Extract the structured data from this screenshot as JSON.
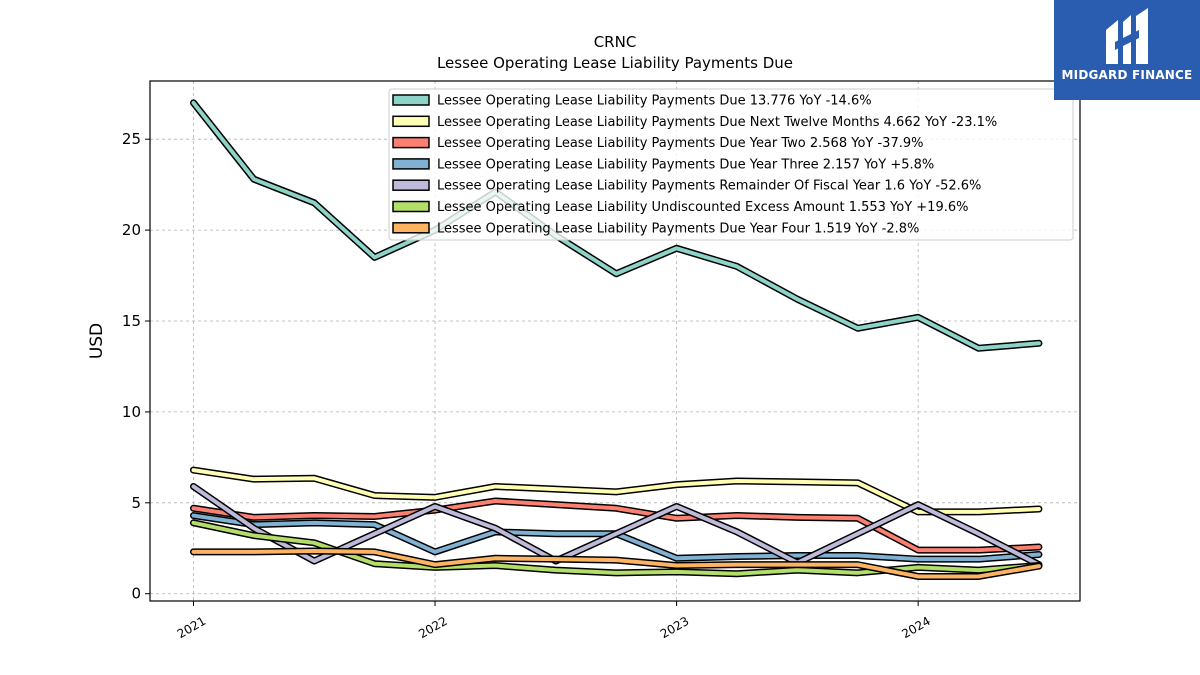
{
  "brand": {
    "name": "MIDGARD FINANCE",
    "bg_color": "#2a5db0"
  },
  "chart_data": {
    "type": "line",
    "title": "CRNC",
    "subtitle": "Lessee Operating Lease Liability Payments Due",
    "ylabel": "USD",
    "xlabel": "",
    "ylim": [
      -0.4,
      28.2
    ],
    "xlim": [
      2020.82,
      2024.67
    ],
    "yticks": [
      0,
      5,
      10,
      15,
      20,
      25
    ],
    "xticks": [
      2021,
      2022,
      2023,
      2024
    ],
    "grid": true,
    "legend_position": "top-right",
    "x": [
      2021.0,
      2021.25,
      2021.5,
      2021.75,
      2022.0,
      2022.25,
      2022.5,
      2022.75,
      2023.0,
      2023.25,
      2023.5,
      2023.75,
      2024.0,
      2024.25,
      2024.5
    ],
    "series": [
      {
        "name": "Lessee Operating Lease Liability Payments Due",
        "legend": "Lessee Operating Lease Liability Payments Due  13.776 YoY -14.6%",
        "color": "#8dd3c7",
        "values": [
          27.0,
          22.8,
          21.5,
          18.5,
          20.0,
          22.1,
          19.7,
          17.6,
          19.0,
          18.0,
          16.2,
          14.6,
          15.2,
          13.5,
          13.776
        ]
      },
      {
        "name": "Lessee Operating Lease Liability Payments Due Next Twelve Months",
        "legend": "Lessee Operating Lease Liability Payments Due Next Twelve Months  4.662 YoY -23.1%",
        "color": "#ffffb3",
        "values": [
          6.8,
          6.3,
          6.35,
          5.4,
          5.3,
          5.9,
          5.75,
          5.6,
          6.0,
          6.2,
          6.15,
          6.1,
          4.5,
          4.5,
          4.662
        ]
      },
      {
        "name": "Lessee Operating Lease Liability Payments Due Year Two",
        "legend": "Lessee Operating Lease Liability Payments Due Year Two  2.568 YoY -37.9%",
        "color": "#fb8072",
        "values": [
          4.7,
          4.2,
          4.3,
          4.25,
          4.6,
          5.1,
          4.9,
          4.7,
          4.15,
          4.3,
          4.2,
          4.15,
          2.4,
          2.4,
          2.568
        ]
      },
      {
        "name": "Lessee Operating Lease Liability Payments Due Year Three",
        "legend": "Lessee Operating Lease Liability Payments Due Year Three  2.157 YoY +5.8%",
        "color": "#80b1d3",
        "values": [
          4.3,
          3.8,
          3.9,
          3.8,
          2.3,
          3.4,
          3.3,
          3.3,
          1.95,
          2.05,
          2.1,
          2.1,
          1.9,
          1.9,
          2.157
        ]
      },
      {
        "name": "Lessee Operating Lease Liability Payments Remainder Of Fiscal Year",
        "legend": "Lessee Operating Lease Liability Payments Remainder Of Fiscal Year  1.6 YoY -52.6%",
        "color": "#bebada",
        "values": [
          5.9,
          3.6,
          1.8,
          3.3,
          4.8,
          3.6,
          1.8,
          3.3,
          4.8,
          3.4,
          1.7,
          3.3,
          4.9,
          3.3,
          1.6
        ]
      },
      {
        "name": "Lessee Operating Lease Liability Undiscounted Excess Amount",
        "legend": "Lessee Operating Lease Liability Undiscounted Excess Amount  1.553 YoY +19.6%",
        "color": "#b3de69",
        "values": [
          3.9,
          3.2,
          2.8,
          1.65,
          1.45,
          1.55,
          1.3,
          1.15,
          1.2,
          1.1,
          1.3,
          1.15,
          1.45,
          1.3,
          1.553
        ]
      },
      {
        "name": "Lessee Operating Lease Liability Payments Due Year Four",
        "legend": "Lessee Operating Lease Liability Payments Due Year Four  1.519 YoY -2.8%",
        "color": "#fdb462",
        "values": [
          2.3,
          2.3,
          2.35,
          2.3,
          1.6,
          1.95,
          1.9,
          1.85,
          1.55,
          1.6,
          1.6,
          1.6,
          0.95,
          0.95,
          1.519
        ]
      }
    ]
  }
}
